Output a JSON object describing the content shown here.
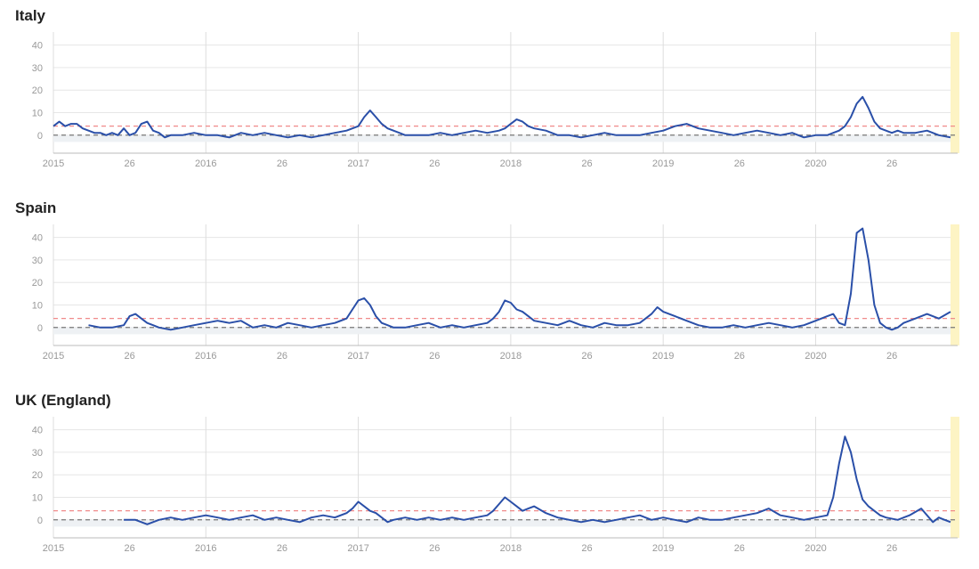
{
  "chart_data": [
    {
      "type": "line",
      "title": "Italy",
      "xlabel": "",
      "ylabel": "",
      "ylim": [
        -8,
        45
      ],
      "yticks": [
        "40",
        "30",
        "20",
        "10",
        "0"
      ],
      "xticks": [
        "2015",
        "26",
        "2016",
        "26",
        "2017",
        "26",
        "2018",
        "26",
        "2019",
        "26",
        "2020",
        "26"
      ],
      "grid": true,
      "threshold": 4,
      "baseline": 0,
      "series": [
        {
          "color": "#2a4fa8",
          "x": [
            0,
            2,
            4,
            6,
            8,
            10,
            12,
            14,
            16,
            18,
            20,
            22,
            24,
            26,
            28,
            30,
            32,
            34,
            36,
            38,
            40,
            44,
            48,
            52,
            56,
            60,
            64,
            68,
            72,
            76,
            80,
            84,
            88,
            92,
            96,
            100,
            104,
            106,
            108,
            110,
            112,
            114,
            116,
            118,
            120,
            124,
            128,
            132,
            136,
            140,
            144,
            148,
            152,
            154,
            156,
            158,
            160,
            162,
            164,
            168,
            172,
            176,
            180,
            184,
            188,
            192,
            196,
            200,
            204,
            208,
            212,
            216,
            220,
            224,
            228,
            232,
            236,
            240,
            244,
            248,
            252,
            256,
            260,
            264,
            266,
            268,
            270,
            272,
            274,
            276,
            278,
            280,
            282,
            284,
            286,
            288,
            290,
            294,
            298,
            302,
            306
          ],
          "y": [
            4,
            6,
            4,
            5,
            5,
            3,
            2,
            1,
            1,
            0,
            1,
            0,
            3,
            0,
            1,
            5,
            6,
            2,
            1,
            -1,
            0,
            0,
            1,
            0,
            0,
            -1,
            1,
            0,
            1,
            0,
            -1,
            0,
            -1,
            0,
            1,
            2,
            4,
            8,
            11,
            8,
            5,
            3,
            2,
            1,
            0,
            0,
            0,
            1,
            0,
            1,
            2,
            1,
            2,
            3,
            5,
            7,
            6,
            4,
            3,
            2,
            0,
            0,
            -1,
            0,
            1,
            0,
            0,
            0,
            1,
            2,
            4,
            5,
            3,
            2,
            1,
            0,
            1,
            2,
            1,
            0,
            1,
            -1,
            0,
            0,
            1,
            2,
            4,
            8,
            14,
            17,
            12,
            6,
            3,
            2,
            1,
            2,
            1,
            1,
            2,
            0,
            -1
          ]
        }
      ]
    },
    {
      "type": "line",
      "title": "Spain",
      "xlabel": "",
      "ylabel": "",
      "ylim": [
        -8,
        45
      ],
      "yticks": [
        "40",
        "30",
        "20",
        "10",
        "0"
      ],
      "xticks": [
        "2015",
        "26",
        "2016",
        "26",
        "2017",
        "26",
        "2018",
        "26",
        "2019",
        "26",
        "2020",
        "26"
      ],
      "grid": true,
      "threshold": 4,
      "baseline": 0,
      "series": [
        {
          "color": "#2a4fa8",
          "x": [
            12,
            16,
            20,
            24,
            26,
            28,
            30,
            32,
            34,
            36,
            40,
            44,
            48,
            52,
            56,
            60,
            64,
            68,
            72,
            76,
            80,
            84,
            88,
            92,
            96,
            100,
            102,
            104,
            106,
            108,
            110,
            112,
            114,
            116,
            120,
            124,
            128,
            132,
            136,
            140,
            144,
            148,
            150,
            152,
            154,
            156,
            158,
            160,
            162,
            164,
            168,
            172,
            176,
            180,
            184,
            188,
            192,
            196,
            200,
            202,
            204,
            206,
            208,
            212,
            216,
            220,
            224,
            228,
            232,
            236,
            240,
            244,
            248,
            252,
            256,
            260,
            264,
            266,
            268,
            270,
            272,
            274,
            276,
            278,
            280,
            282,
            284,
            286,
            288,
            290,
            294,
            298,
            302,
            306
          ],
          "y": [
            1,
            0,
            0,
            1,
            5,
            6,
            4,
            2,
            1,
            0,
            -1,
            0,
            1,
            2,
            3,
            2,
            3,
            0,
            1,
            0,
            2,
            1,
            0,
            1,
            2,
            4,
            8,
            12,
            13,
            10,
            5,
            2,
            1,
            0,
            0,
            1,
            2,
            0,
            1,
            0,
            1,
            2,
            4,
            7,
            12,
            11,
            8,
            7,
            5,
            3,
            2,
            1,
            3,
            1,
            0,
            2,
            1,
            1,
            2,
            4,
            6,
            9,
            7,
            5,
            3,
            1,
            0,
            0,
            1,
            0,
            1,
            2,
            1,
            0,
            1,
            3,
            5,
            6,
            2,
            1,
            15,
            42,
            44,
            30,
            10,
            2,
            0,
            -1,
            0,
            2,
            4,
            6,
            4,
            7
          ]
        }
      ]
    },
    {
      "type": "line",
      "title": "UK (England)",
      "xlabel": "",
      "ylabel": "",
      "ylim": [
        -8,
        45
      ],
      "yticks": [
        "40",
        "30",
        "20",
        "10",
        "0"
      ],
      "xticks": [
        "2015",
        "26",
        "2016",
        "26",
        "2017",
        "26",
        "2018",
        "26",
        "2019",
        "26",
        "2020",
        "26"
      ],
      "grid": true,
      "threshold": 4,
      "baseline": 0,
      "series": [
        {
          "color": "#2a4fa8",
          "x": [
            24,
            28,
            32,
            36,
            40,
            44,
            48,
            52,
            56,
            60,
            64,
            68,
            72,
            76,
            80,
            84,
            88,
            92,
            96,
            100,
            102,
            104,
            106,
            108,
            110,
            112,
            114,
            116,
            120,
            124,
            128,
            132,
            136,
            140,
            144,
            148,
            150,
            152,
            154,
            156,
            158,
            160,
            162,
            164,
            168,
            172,
            176,
            180,
            184,
            188,
            192,
            196,
            200,
            204,
            208,
            212,
            216,
            220,
            224,
            228,
            232,
            236,
            240,
            244,
            248,
            252,
            256,
            260,
            264,
            266,
            268,
            270,
            272,
            274,
            276,
            278,
            280,
            282,
            284,
            288,
            292,
            296,
            300,
            302,
            304,
            306
          ],
          "y": [
            0,
            0,
            -2,
            0,
            1,
            0,
            1,
            2,
            1,
            0,
            1,
            2,
            0,
            1,
            0,
            -1,
            1,
            2,
            1,
            3,
            5,
            8,
            6,
            4,
            3,
            1,
            -1,
            0,
            1,
            0,
            1,
            0,
            1,
            0,
            1,
            2,
            4,
            7,
            10,
            8,
            6,
            4,
            5,
            6,
            3,
            1,
            0,
            -1,
            0,
            -1,
            0,
            1,
            2,
            0,
            1,
            0,
            -1,
            1,
            0,
            0,
            1,
            2,
            3,
            5,
            2,
            1,
            0,
            1,
            2,
            10,
            25,
            37,
            30,
            18,
            9,
            6,
            4,
            2,
            1,
            0,
            2,
            5,
            -1,
            1,
            0,
            -1
          ]
        }
      ]
    }
  ]
}
